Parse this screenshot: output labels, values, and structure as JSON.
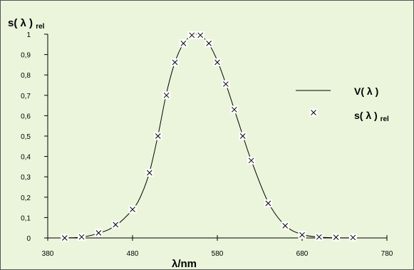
{
  "chart_data": {
    "type": "scatter",
    "ylabel": {
      "main": "s( λ )",
      "sub": "rel"
    },
    "xlabel": "λ/nm",
    "xlim": [
      380,
      780
    ],
    "ylim": [
      0,
      1
    ],
    "x_ticks": [
      "380",
      "480",
      "580",
      "680",
      "780"
    ],
    "y_ticks": [
      "0",
      "0,1",
      "0,2",
      "0,3",
      "0,4",
      "0,5",
      "0,6",
      "0,7",
      "0,8",
      "0,9",
      "1"
    ],
    "grid": false,
    "legend_position": "right",
    "series": [
      {
        "name": "V( λ )",
        "kind": "line",
        "x": [
          380,
          400,
          420,
          440,
          460,
          480,
          490,
          500,
          510,
          520,
          530,
          540,
          550,
          555,
          560,
          570,
          580,
          590,
          600,
          610,
          620,
          640,
          660,
          680,
          700,
          720,
          740,
          760,
          780
        ],
        "y": [
          0,
          0.0004,
          0.004,
          0.023,
          0.06,
          0.139,
          0.208,
          0.323,
          0.503,
          0.71,
          0.862,
          0.954,
          0.995,
          1.0,
          0.995,
          0.952,
          0.87,
          0.757,
          0.631,
          0.503,
          0.381,
          0.175,
          0.061,
          0.017,
          0.0041,
          0.001,
          0.0002,
          0.0001,
          0
        ]
      },
      {
        "name_main": "s( λ )",
        "name_sub": "rel",
        "kind": "markers",
        "x": [
          400,
          420,
          440,
          460,
          480,
          500,
          510,
          520,
          530,
          540,
          550,
          560,
          570,
          580,
          590,
          600,
          610,
          620,
          640,
          660,
          680,
          700,
          720,
          740
        ],
        "y": [
          0.0,
          0.005,
          0.025,
          0.065,
          0.14,
          0.32,
          0.5,
          0.7,
          0.862,
          0.955,
          0.995,
          0.995,
          0.955,
          0.862,
          0.755,
          0.63,
          0.5,
          0.38,
          0.17,
          0.06,
          0.015,
          0.005,
          0.003,
          0.002
        ]
      }
    ]
  }
}
